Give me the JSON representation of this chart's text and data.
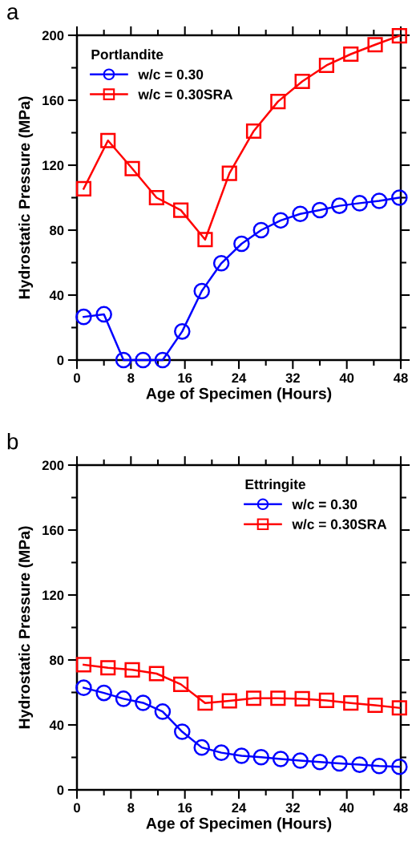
{
  "chart_data": [
    {
      "type": "line",
      "title": "a",
      "xlabel": "Age of Specimen (Hours)",
      "ylabel": "Hydrostatic Pressure (MPa)",
      "legend_title": "Portlandite",
      "legend": "top left",
      "line_style": "solid",
      "grid": false,
      "xlim": [
        0,
        48
      ],
      "ylim": [
        0,
        200
      ],
      "xticks": [
        0,
        {
          "value": 4,
          "label": null
        },
        8,
        {
          "value": 12,
          "label": null
        },
        16,
        {
          "value": 20,
          "label": null
        },
        24,
        {
          "value": 28,
          "label": null
        },
        32,
        {
          "value": 36,
          "label": null
        },
        40,
        {
          "value": 44,
          "label": null
        },
        48
      ],
      "yticks": [
        0,
        {
          "value": 20,
          "label": null
        },
        40,
        {
          "value": 60,
          "label": null
        },
        80,
        {
          "value": 100,
          "label": null
        },
        120,
        {
          "value": 140,
          "label": null
        },
        160,
        {
          "value": 180,
          "label": null
        },
        200
      ],
      "series": [
        {
          "name": "w/c = 0.30",
          "color": "#0000ff",
          "marker": "circle",
          "x": [
            1.0,
            4.0,
            6.9,
            9.8,
            12.7,
            15.6,
            18.5,
            21.4,
            24.4,
            27.3,
            30.2,
            33.1,
            36.0,
            38.9,
            41.9,
            44.8,
            47.8
          ],
          "values": [
            26.6,
            28.2,
            0,
            0,
            0,
            17.6,
            42.5,
            59.6,
            71.6,
            80,
            86,
            90,
            92.3,
            95,
            96.6,
            98,
            100
          ]
        },
        {
          "name": "w/c = 0.30SRA",
          "color": "#ff0000",
          "marker": "square",
          "x": [
            1.0,
            4.6,
            8.2,
            11.8,
            15.4,
            19.0,
            22.6,
            26.2,
            29.8,
            33.4,
            37.0,
            40.6,
            44.2,
            47.8
          ],
          "values": [
            105.5,
            135.2,
            117.9,
            100,
            92.3,
            74.2,
            115,
            141,
            159.2,
            171.6,
            181.5,
            188.4,
            194.2,
            199.7
          ]
        }
      ]
    },
    {
      "type": "line",
      "title": "b",
      "xlabel": "Age of Specimen (Hours)",
      "ylabel": "Hydrostatic Pressure (MPa)",
      "legend_title": "Ettringite",
      "legend": "top right",
      "line_style": "solid",
      "grid": false,
      "xlim": [
        0,
        48
      ],
      "ylim": [
        0,
        200
      ],
      "xticks": [
        0,
        {
          "value": 4,
          "label": null
        },
        8,
        {
          "value": 12,
          "label": null
        },
        16,
        {
          "value": 20,
          "label": null
        },
        24,
        {
          "value": 28,
          "label": null
        },
        32,
        {
          "value": 36,
          "label": null
        },
        40,
        {
          "value": 44,
          "label": null
        },
        48
      ],
      "yticks": [
        0,
        {
          "value": 20,
          "label": null
        },
        40,
        {
          "value": 60,
          "label": null
        },
        80,
        {
          "value": 100,
          "label": null
        },
        120,
        {
          "value": 140,
          "label": null
        },
        160,
        {
          "value": 180,
          "label": null
        },
        200
      ],
      "series": [
        {
          "name": "w/c = 0.30",
          "color": "#0000ff",
          "marker": "circle",
          "x": [
            1.0,
            4.0,
            6.9,
            9.8,
            12.7,
            15.6,
            18.5,
            21.4,
            24.4,
            27.3,
            30.2,
            33.1,
            36.0,
            38.9,
            41.9,
            44.8,
            47.8
          ],
          "values": [
            62.9,
            59.7,
            56.1,
            53.6,
            48.2,
            35.8,
            26.1,
            22.9,
            21,
            20.1,
            19,
            18,
            17.2,
            16.3,
            15.5,
            14.7,
            14.2
          ]
        },
        {
          "name": "w/c = 0.30SRA",
          "color": "#ff0000",
          "marker": "square",
          "x": [
            1.0,
            4.6,
            8.2,
            11.8,
            15.4,
            19.0,
            22.6,
            26.2,
            29.8,
            33.4,
            37.0,
            40.6,
            44.2,
            47.8
          ],
          "values": [
            77.1,
            75.2,
            73.9,
            71.6,
            65,
            53.5,
            54.8,
            56.4,
            56.4,
            56.1,
            55.1,
            53.5,
            52.1,
            50.5
          ]
        }
      ]
    }
  ]
}
